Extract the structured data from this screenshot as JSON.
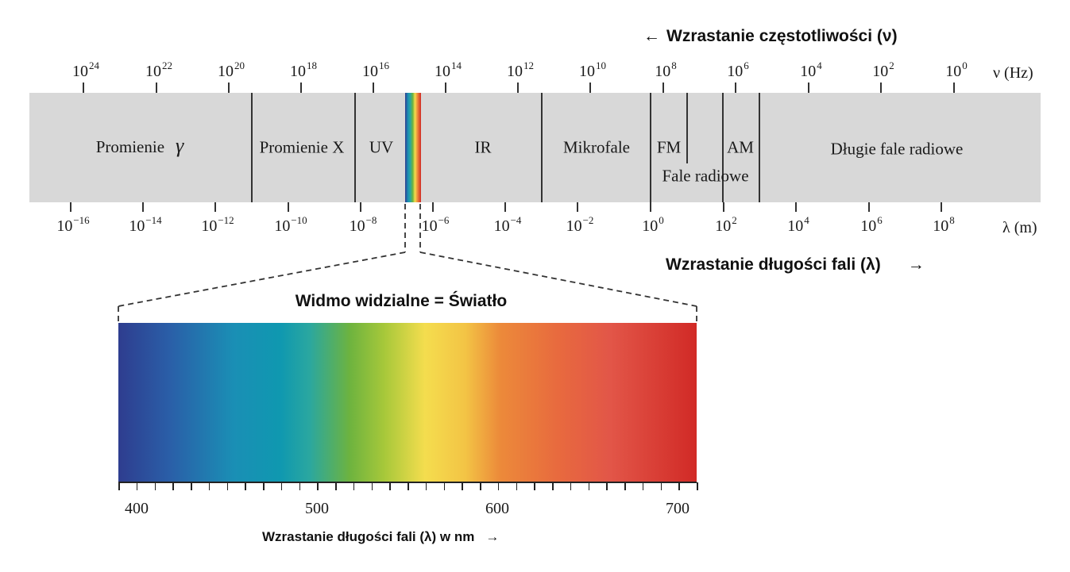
{
  "top_arrow": {
    "arrow": "←",
    "text": "Wzrastanie częstotliwości (ν)"
  },
  "frequency_axis": {
    "unit": "ν (Hz)",
    "ticks": [
      {
        "base": "10",
        "exp": "24"
      },
      {
        "base": "10",
        "exp": "22"
      },
      {
        "base": "10",
        "exp": "20"
      },
      {
        "base": "10",
        "exp": "18"
      },
      {
        "base": "10",
        "exp": "16"
      },
      {
        "base": "10",
        "exp": "14"
      },
      {
        "base": "10",
        "exp": "12"
      },
      {
        "base": "10",
        "exp": "10"
      },
      {
        "base": "10",
        "exp": "8"
      },
      {
        "base": "10",
        "exp": "6"
      },
      {
        "base": "10",
        "exp": "4"
      },
      {
        "base": "10",
        "exp": "2"
      },
      {
        "base": "10",
        "exp": "0"
      }
    ]
  },
  "bands": {
    "gamma": "Promienie",
    "gamma_symbol": "γ",
    "xray": "Promienie X",
    "uv": "UV",
    "ir": "IR",
    "microwave": "Mikrofale",
    "fm": "FM",
    "am": "AM",
    "radio": "Fale radiowe",
    "long_radio": "Długie fale radiowe"
  },
  "wavelength_axis": {
    "unit": "λ (m)",
    "ticks": [
      {
        "base": "10",
        "exp": "−16"
      },
      {
        "base": "10",
        "exp": "−14"
      },
      {
        "base": "10",
        "exp": "−12"
      },
      {
        "base": "10",
        "exp": "−10"
      },
      {
        "base": "10",
        "exp": "−8"
      },
      {
        "base": "10",
        "exp": "−6"
      },
      {
        "base": "10",
        "exp": "−4"
      },
      {
        "base": "10",
        "exp": "−2"
      },
      {
        "base": "10",
        "exp": "0"
      },
      {
        "base": "10",
        "exp": "2"
      },
      {
        "base": "10",
        "exp": "4"
      },
      {
        "base": "10",
        "exp": "6"
      },
      {
        "base": "10",
        "exp": "8"
      }
    ]
  },
  "bottom_arrow": {
    "text": "Wzrastanie długości fali (λ)",
    "arrow": "→"
  },
  "visible": {
    "title": "Widmo widzialne = Światło",
    "nm_ticks": [
      "400",
      "500",
      "600",
      "700"
    ],
    "axis_caption": "Wzrastanie długości fali (λ) w nm",
    "axis_arrow": "→"
  },
  "colors": {
    "band_bg": "#d8d8d8",
    "spectrum": [
      "#2e3d8f",
      "#2a5fa8",
      "#1a8fb5",
      "#0f98b0",
      "#2aa7a0",
      "#6db33f",
      "#a7c83a",
      "#f4dd4e",
      "#f3c445",
      "#ec8a3a",
      "#e86a3e",
      "#e25648",
      "#d12a26"
    ]
  }
}
